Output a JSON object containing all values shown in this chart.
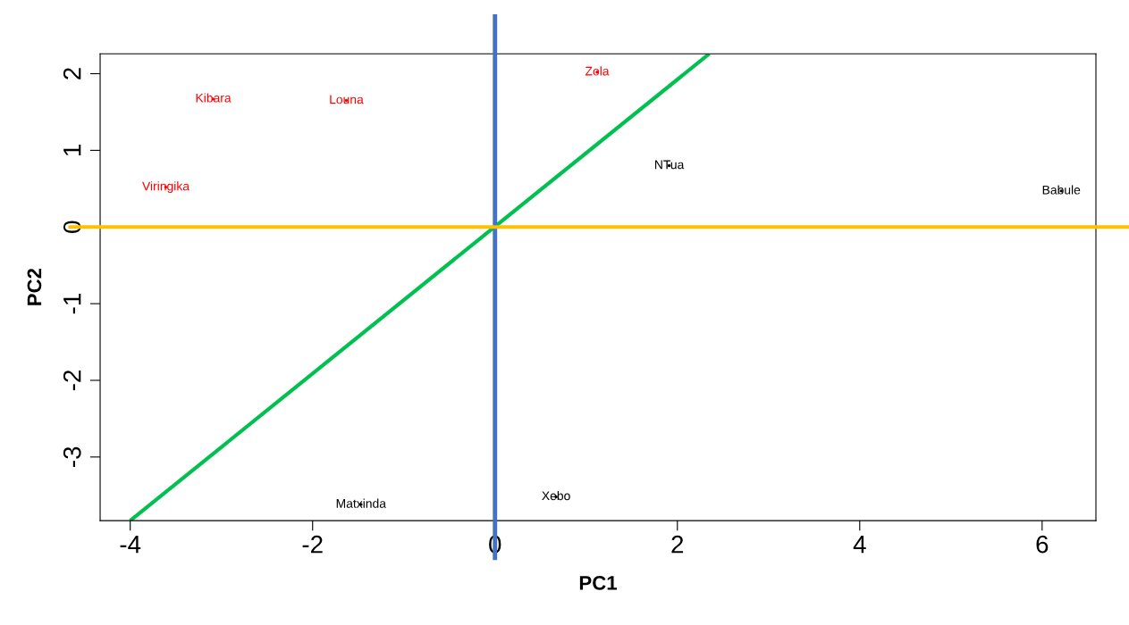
{
  "chart_data": {
    "type": "scatter",
    "xlabel": "PC1",
    "ylabel": "PC2",
    "xlim": [
      -4.33,
      6.59
    ],
    "ylim": [
      -3.83,
      2.26
    ],
    "xticks": [
      -4,
      -2,
      0,
      2,
      4,
      6
    ],
    "yticks": [
      -3,
      -2,
      -1,
      0,
      1,
      2
    ],
    "marker": "none",
    "grid": false,
    "legend": false,
    "series": [
      {
        "color": "#ff0000",
        "x": [
          1.12,
          -3.09,
          -1.63,
          -3.61
        ],
        "values": [
          2.02,
          1.67,
          1.65,
          0.52
        ],
        "value_labels": [
          "Zola",
          "Kibara",
          "Louna",
          "Viringika"
        ]
      },
      {
        "color": "#000000",
        "x": [
          1.91,
          6.21,
          -1.47,
          0.67
        ],
        "values": [
          0.8,
          0.47,
          -3.62,
          -3.52
        ],
        "value_labels": [
          "NTua",
          "Babule",
          "Matxinda",
          "Xebo"
        ]
      },
      {
        "type": "line",
        "color": "#00c050",
        "x": [
          -4,
          2.35
        ],
        "values": [
          -3.83,
          2.26
        ]
      }
    ],
    "ref_lines": [
      {
        "axis": "x",
        "value": 0,
        "color": "#4472c4"
      },
      {
        "axis": "y",
        "value": 0,
        "color": "#ffc000"
      }
    ]
  }
}
